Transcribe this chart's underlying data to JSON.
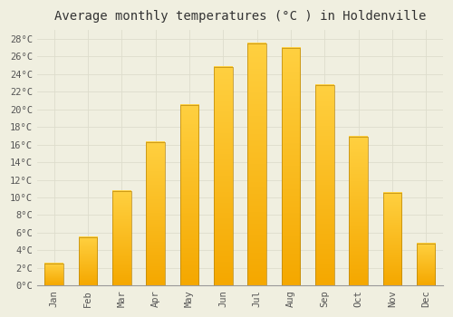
{
  "title": "Average monthly temperatures (°C ) in Holdenville",
  "months": [
    "Jan",
    "Feb",
    "Mar",
    "Apr",
    "May",
    "Jun",
    "Jul",
    "Aug",
    "Sep",
    "Oct",
    "Nov",
    "Dec"
  ],
  "values": [
    2.5,
    5.5,
    10.7,
    16.3,
    20.5,
    24.8,
    27.5,
    27.0,
    22.8,
    16.9,
    10.5,
    4.8
  ],
  "bar_color_bottom": "#F5A800",
  "bar_color_top": "#FFD040",
  "bar_edge_color": "#B8860B",
  "ylim": [
    0,
    29
  ],
  "yticks": [
    0,
    2,
    4,
    6,
    8,
    10,
    12,
    14,
    16,
    18,
    20,
    22,
    24,
    26,
    28
  ],
  "ytick_labels": [
    "0°C",
    "2°C",
    "4°C",
    "6°C",
    "8°C",
    "10°C",
    "12°C",
    "14°C",
    "16°C",
    "18°C",
    "20°C",
    "22°C",
    "24°C",
    "26°C",
    "28°C"
  ],
  "background_color": "#F0EFE0",
  "grid_color": "#DDDDCC",
  "title_fontsize": 10,
  "tick_fontsize": 7.5,
  "bar_width": 0.55
}
